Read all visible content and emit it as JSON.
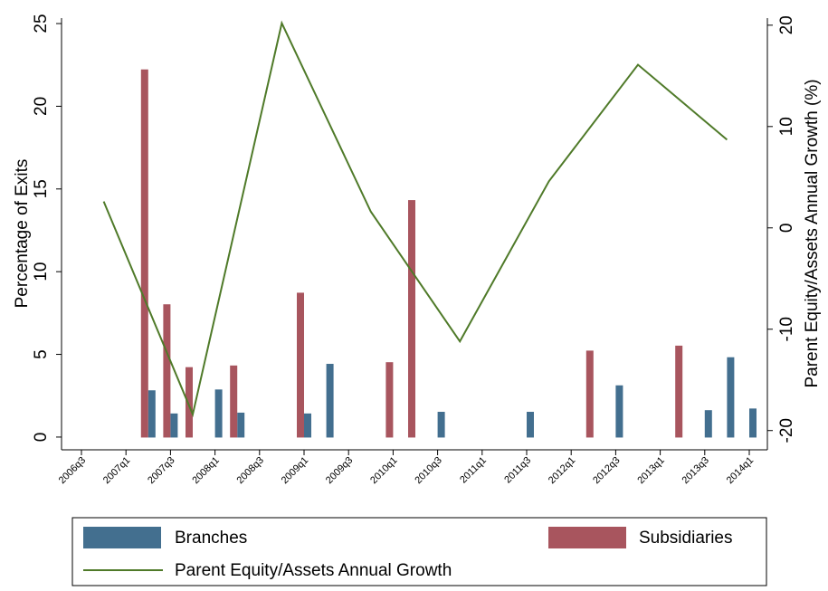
{
  "chart_data": {
    "type": "bar-line",
    "categories": [
      "2006q3",
      null,
      "2007q1",
      null,
      "2007q3",
      null,
      "2008q1",
      null,
      "2008q3",
      null,
      "2009q1",
      null,
      "2009q3",
      null,
      "2010q1",
      null,
      "2010q3",
      null,
      "2011q1",
      null,
      "2011q3",
      null,
      "2012q1",
      null,
      "2012q3",
      null,
      "2013q1",
      null,
      "2013q3",
      null,
      "2014q1"
    ],
    "series": [
      {
        "name": "Branches",
        "type": "bar",
        "color": "#436f8f",
        "values": [
          null,
          null,
          null,
          2.8,
          1.4,
          null,
          2.85,
          1.45,
          null,
          null,
          1.4,
          4.4,
          null,
          null,
          null,
          null,
          1.5,
          null,
          null,
          null,
          1.5,
          null,
          null,
          null,
          3.1,
          null,
          null,
          null,
          1.6,
          4.8,
          1.7
        ]
      },
      {
        "name": "Subsidiaries",
        "type": "bar",
        "color": "#a8555e",
        "values": [
          null,
          null,
          null,
          22.2,
          8.0,
          4.2,
          null,
          4.3,
          null,
          null,
          8.7,
          null,
          null,
          null,
          4.5,
          14.3,
          null,
          null,
          null,
          null,
          null,
          null,
          null,
          5.2,
          null,
          null,
          null,
          5.5,
          null,
          null,
          null
        ]
      },
      {
        "name": "Parent Equity/Assets Annual Growth",
        "type": "line",
        "axis": "y2",
        "color": "#4f7a29",
        "connect_gaps": true,
        "values": [
          null,
          2.6,
          null,
          null,
          null,
          -18.4,
          null,
          null,
          null,
          20.2,
          null,
          null,
          null,
          1.6,
          null,
          null,
          null,
          -11.2,
          null,
          null,
          null,
          4.6,
          null,
          null,
          null,
          16.1,
          null,
          null,
          null,
          8.7,
          null
        ]
      }
    ],
    "ylabel": "Percentage of Exits",
    "y2label": "Parent Equity/Assets Annual Growth (%)",
    "ylim": [
      -0.77,
      25.33
    ],
    "yticks": [
      0,
      5,
      10,
      15,
      20,
      25
    ],
    "y2lim": [
      -21.9,
      20.7
    ],
    "y2ticks": [
      -20,
      -10,
      0,
      10,
      20
    ],
    "grid": false
  }
}
